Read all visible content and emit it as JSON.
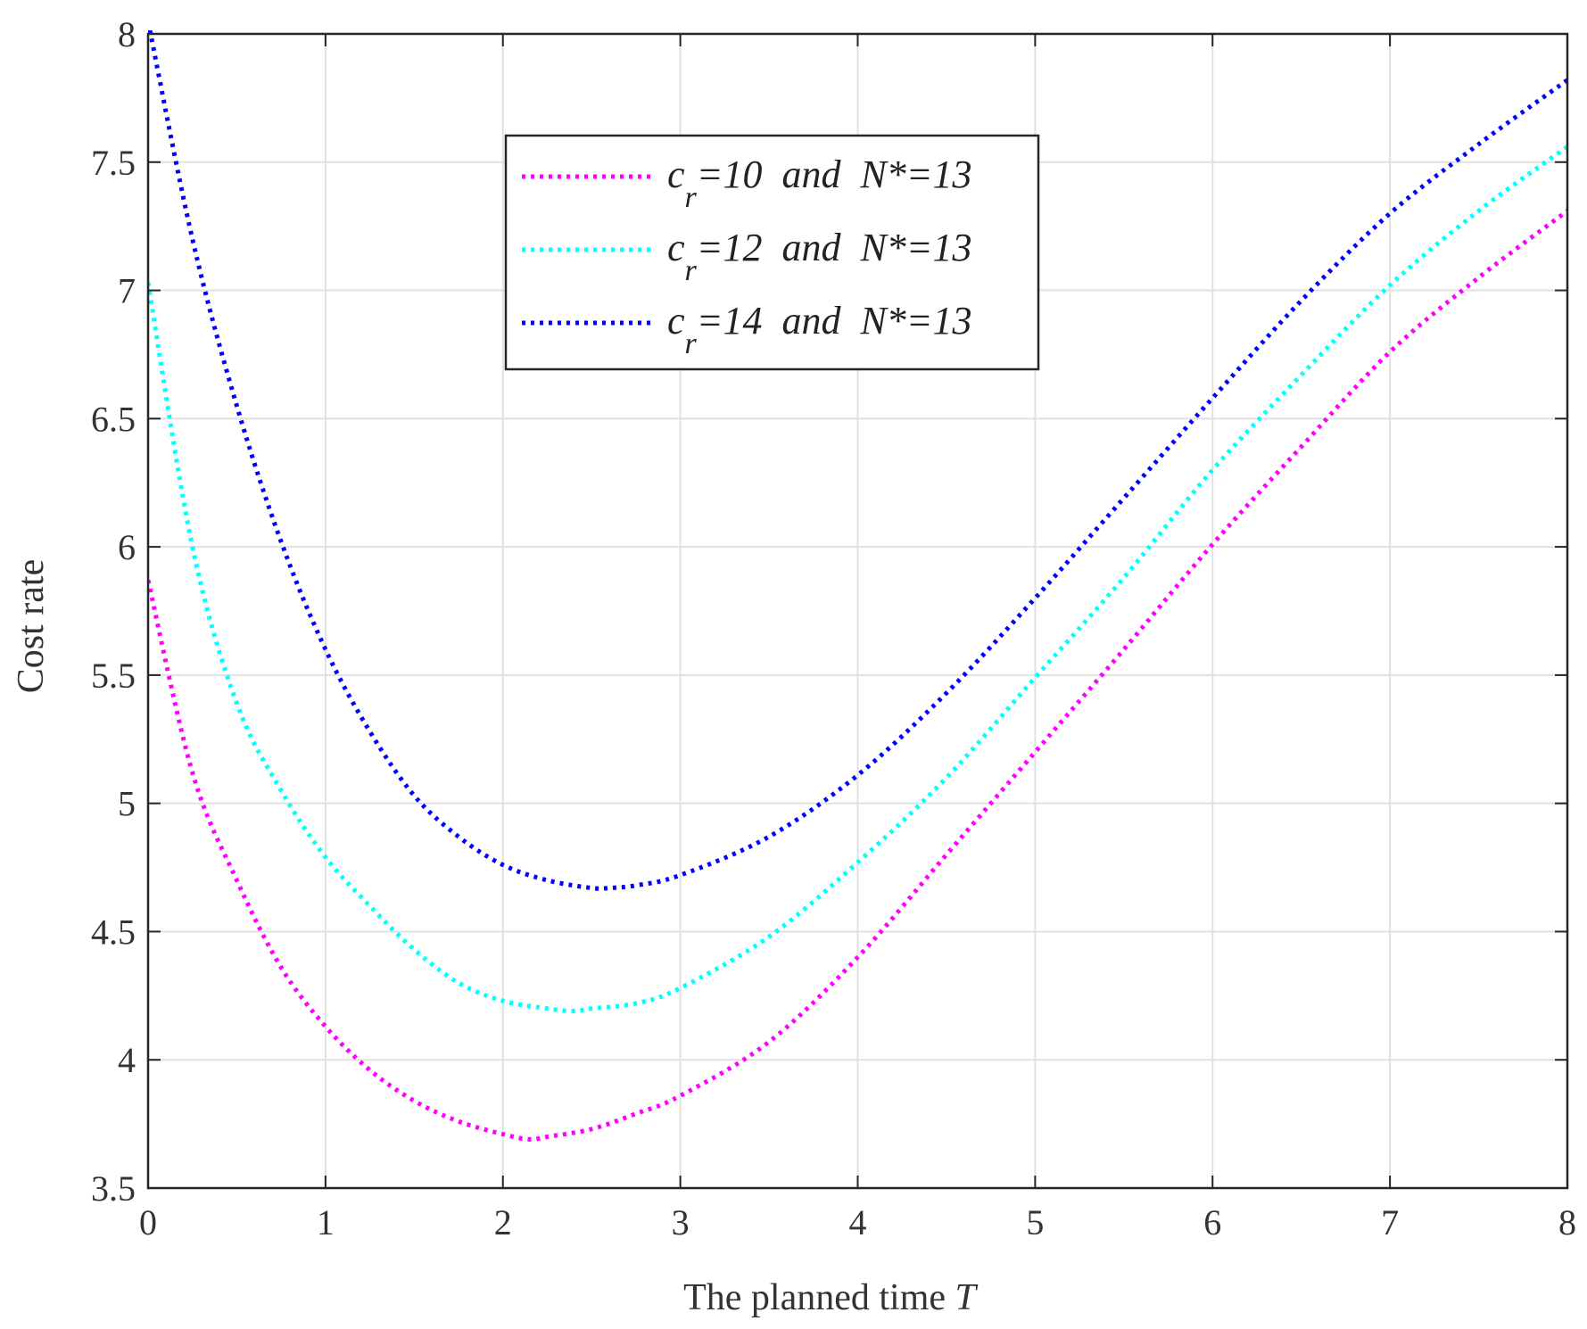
{
  "chart_data": {
    "type": "line",
    "title": "",
    "xlabel": "The planned time",
    "xlabel_var": "T",
    "ylabel": "Cost rate",
    "xlim": [
      0,
      8
    ],
    "ylim": [
      3.5,
      8
    ],
    "xticks": [
      0,
      1,
      2,
      3,
      4,
      5,
      6,
      7,
      8
    ],
    "yticks": [
      3.5,
      4,
      4.5,
      5,
      5.5,
      6,
      6.5,
      7,
      7.5,
      8
    ],
    "grid": true,
    "legend_position": "top-center",
    "line_style": "dotted",
    "series": [
      {
        "name": "c_r=10 and N*=13",
        "label": {
          "sym": "c",
          "sub": "r",
          "rest": "=10  and  N*=13"
        },
        "color": "#ff00ff",
        "x": [
          0,
          0.25,
          0.5,
          0.75,
          1,
          1.25,
          1.5,
          1.75,
          2,
          2.15,
          2.25,
          2.5,
          2.75,
          3,
          3.5,
          4,
          4.5,
          5,
          5.5,
          6,
          6.5,
          7,
          7.5,
          8
        ],
        "y": [
          5.87,
          5.12,
          4.7,
          4.36,
          4.13,
          3.96,
          3.84,
          3.76,
          3.71,
          3.69,
          3.7,
          3.73,
          3.79,
          3.86,
          4.07,
          4.4,
          4.8,
          5.2,
          5.6,
          6.01,
          6.39,
          6.76,
          7.05,
          7.31
        ]
      },
      {
        "name": "c_r=12 and N*=13",
        "label": {
          "sym": "c",
          "sub": "r",
          "rest": "=12  and  N*=13"
        },
        "color": "#00ffff",
        "x": [
          0,
          0.25,
          0.5,
          0.75,
          1,
          1.25,
          1.5,
          1.75,
          2,
          2.25,
          2.4,
          2.5,
          2.75,
          3,
          3.5,
          4,
          4.5,
          5,
          5.5,
          6,
          6.5,
          7,
          7.5,
          8
        ],
        "y": [
          7.03,
          6.0,
          5.39,
          5.05,
          4.79,
          4.6,
          4.43,
          4.3,
          4.23,
          4.2,
          4.19,
          4.2,
          4.22,
          4.28,
          4.48,
          4.77,
          5.1,
          5.49,
          5.88,
          6.3,
          6.67,
          7.02,
          7.31,
          7.56
        ]
      },
      {
        "name": "c_r=14 and N*=13",
        "label": {
          "sym": "c",
          "sub": "r",
          "rest": "=14  and  N*=13"
        },
        "color": "#0000ff",
        "x": [
          0,
          0.25,
          0.5,
          0.75,
          1,
          1.25,
          1.5,
          1.75,
          2,
          2.25,
          2.5,
          2.6,
          2.75,
          3,
          3.5,
          4,
          4.5,
          5,
          5.5,
          6,
          6.5,
          7,
          7.5,
          8
        ],
        "y": [
          8.05,
          7.2,
          6.55,
          6.02,
          5.6,
          5.28,
          5.03,
          4.87,
          4.76,
          4.7,
          4.67,
          4.67,
          4.68,
          4.72,
          4.87,
          5.11,
          5.43,
          5.8,
          6.19,
          6.58,
          6.96,
          7.3,
          7.57,
          7.82
        ]
      }
    ]
  }
}
